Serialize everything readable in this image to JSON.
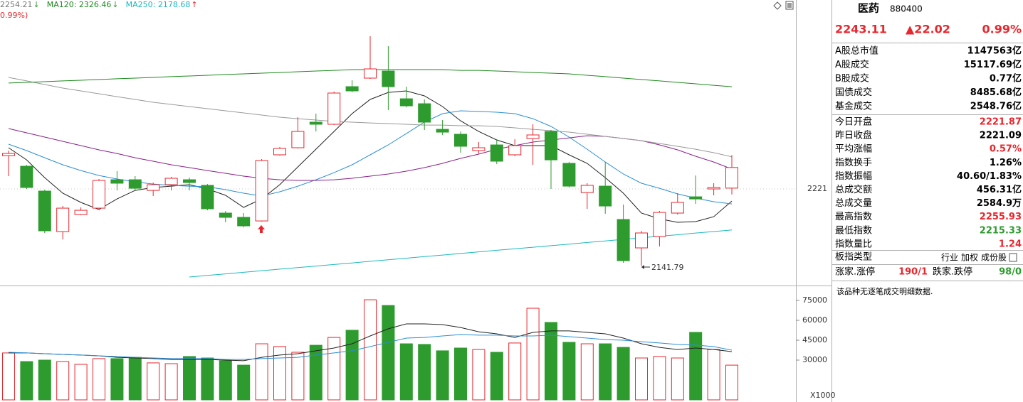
{
  "chart_data": [
    {
      "type": "candlestick",
      "ylim": [
        2121.4,
        2414.4
      ],
      "yticks": [
        2221
      ],
      "grid": true,
      "up_color": "#e8262d",
      "down_color": "#2e9b2e",
      "open": [
        2255.4,
        2244.4,
        2218.8,
        2177.0,
        2194.6,
        2201.2,
        2230.5,
        2230.5,
        2219.5,
        2225.4,
        2230.5,
        2224.7,
        2196.1,
        2191.7,
        2188.0,
        2256.2,
        2263.5,
        2289.9,
        2287.7,
        2326.5,
        2335.3,
        2342.6,
        2314.0,
        2308.9,
        2282.5,
        2277.4,
        2260.6,
        2266.4,
        2256.2,
        2273.0,
        2280.3,
        2247.4,
        2217.3,
        2223.9,
        2189.5,
        2160.2,
        2171.9,
        2196.1,
        2212.9,
        2221.0,
        2221.87
      ],
      "high": [
        2260.6,
        2245.9,
        2220.3,
        2203.4,
        2202.0,
        2231.3,
        2239.3,
        2234.2,
        2227.6,
        2233.5,
        2232.7,
        2226.1,
        2198.3,
        2196.1,
        2251.8,
        2264.2,
        2295.0,
        2298.7,
        2321.4,
        2333.1,
        2378.5,
        2368.3,
        2326.5,
        2313.3,
        2292.1,
        2280.3,
        2269.4,
        2272.3,
        2272.3,
        2287.7,
        2281.8,
        2248.8,
        2226.9,
        2248.8,
        2204.9,
        2177.8,
        2198.3,
        2216.6,
        2234.9,
        2226.9,
        2255.93
      ],
      "low": [
        2234.2,
        2221.0,
        2175.6,
        2169.0,
        2193.9,
        2200.5,
        2219.5,
        2219.5,
        2213.7,
        2219.5,
        2219.5,
        2199.0,
        2186.6,
        2181.4,
        2187.3,
        2255.4,
        2262.8,
        2280.3,
        2286.9,
        2320.6,
        2334.6,
        2302.3,
        2305.2,
        2281.8,
        2276.7,
        2258.4,
        2257.6,
        2246.6,
        2254.7,
        2245.9,
        2221.0,
        2222.5,
        2200.5,
        2195.4,
        2144.8,
        2141.79,
        2161.7,
        2194.6,
        2205.6,
        2214.4,
        2215.33
      ],
      "close": [
        2257.6,
        2222.5,
        2177.8,
        2201.2,
        2199.0,
        2229.8,
        2226.9,
        2221.7,
        2225.4,
        2232.0,
        2227.6,
        2200.5,
        2191.7,
        2182.9,
        2250.3,
        2262.8,
        2280.3,
        2287.7,
        2319.9,
        2322.1,
        2344.8,
        2326.5,
        2306.7,
        2289.9,
        2279.6,
        2265.0,
        2263.5,
        2249.6,
        2265.7,
        2276.7,
        2251.0,
        2223.9,
        2224.7,
        2203.4,
        2147.0,
        2175.6,
        2196.8,
        2207.1,
        2210.7,
        2222.5,
        2243.11
      ],
      "series": [
        {
          "color": "#222222",
          "values": [
            2263.5,
            2251.0,
            2232.7,
            2216.6,
            2207.1,
            2199.8,
            2210.7,
            2219.5,
            2222.5,
            2223.9,
            2225.4,
            2221.0,
            2214.4,
            2202.0,
            2210.7,
            2225.4,
            2243.7,
            2262.0,
            2280.3,
            2298.7,
            2313.3,
            2320.6,
            2322.1,
            2317.0,
            2306.0,
            2291.3,
            2280.3,
            2271.5,
            2265.7,
            2265.7,
            2265.7,
            2256.2,
            2247.4,
            2232.7,
            2216.6,
            2196.1,
            2190.2,
            2186.6,
            2187.3,
            2192.4,
            2208.5
          ]
        },
        {
          "color": "#2a8fd6",
          "values": [
            2267.2,
            2260.6,
            2253.2,
            2245.9,
            2240.0,
            2234.9,
            2231.3,
            2228.3,
            2226.1,
            2224.7,
            2223.9,
            2223.2,
            2220.3,
            2216.6,
            2213.7,
            2218.1,
            2223.9,
            2230.5,
            2237.8,
            2245.9,
            2256.2,
            2266.4,
            2278.1,
            2289.9,
            2298.7,
            2301.6,
            2300.9,
            2300.1,
            2298.7,
            2293.5,
            2285.5,
            2274.5,
            2262.0,
            2248.8,
            2236.4,
            2226.9,
            2221.7,
            2215.9,
            2211.5,
            2207.8,
            2205.6
          ]
        },
        {
          "color": "#8a1f8a",
          "values": [
            2283.3,
            2278.9,
            2274.5,
            2270.1,
            2265.7,
            2261.3,
            2257.6,
            2253.2,
            2249.6,
            2245.9,
            2243.0,
            2240.0,
            2237.1,
            2234.2,
            2232.0,
            2230.5,
            2229.8,
            2229.8,
            2230.5,
            2232.0,
            2234.2,
            2236.4,
            2239.3,
            2243.0,
            2247.4,
            2252.5,
            2256.9,
            2262.0,
            2265.7,
            2269.4,
            2271.5,
            2273.7,
            2275.9,
            2275.2,
            2273.0,
            2270.8,
            2266.4,
            2261.3,
            2254.7,
            2248.8,
            2241.5
          ]
        },
        {
          "color": "#999999",
          "values": [
            2336.0,
            2332.4,
            2328.7,
            2325.0,
            2322.1,
            2319.2,
            2316.2,
            2313.3,
            2310.4,
            2308.2,
            2306.0,
            2303.8,
            2301.6,
            2299.4,
            2297.2,
            2295.0,
            2293.5,
            2292.1,
            2290.6,
            2289.9,
            2289.1,
            2288.4,
            2287.7,
            2286.9,
            2286.9,
            2286.2,
            2286.2,
            2285.5,
            2284.0,
            2282.5,
            2281.1,
            2279.6,
            2277.4,
            2275.2,
            2273.0,
            2270.8,
            2267.9,
            2265.0,
            2262.0,
            2258.4,
            2254.21
          ]
        },
        {
          "color": "#1e8a1e",
          "values": [
            2330.2,
            2330.9,
            2331.6,
            2332.4,
            2333.1,
            2333.8,
            2334.6,
            2335.3,
            2336.0,
            2336.8,
            2337.5,
            2338.2,
            2339.0,
            2339.7,
            2340.4,
            2341.1,
            2341.9,
            2342.6,
            2343.3,
            2344.1,
            2344.1,
            2344.1,
            2344.1,
            2344.1,
            2344.1,
            2343.3,
            2343.3,
            2342.6,
            2341.9,
            2341.1,
            2340.4,
            2339.7,
            2338.2,
            2336.8,
            2335.3,
            2333.8,
            2332.4,
            2330.9,
            2329.4,
            2327.9,
            2326.46
          ]
        },
        {
          "color": "#1cb8c0",
          "values": [
            null,
            null,
            null,
            null,
            null,
            null,
            null,
            null,
            null,
            null,
            2130.2,
            2131.8,
            2133.4,
            2135.0,
            2136.7,
            2138.3,
            2139.9,
            2141.5,
            2143.1,
            2144.7,
            2146.4,
            2148.0,
            2149.6,
            2151.2,
            2152.8,
            2154.4,
            2156.1,
            2157.7,
            2159.3,
            2160.9,
            2162.5,
            2164.1,
            2165.8,
            2167.4,
            2169.0,
            2170.6,
            2172.2,
            2173.8,
            2175.5,
            2177.1,
            2178.68
          ]
        }
      ],
      "ma_labels": [
        {
          "text": "2254.21",
          "arrow": "↓",
          "color": "#777777",
          "arrow_color": "#2e9b2e"
        },
        {
          "text": "MA120: 2326.46",
          "arrow": "↓",
          "color": "#1e8a1e",
          "arrow_color": "#2e9b2e"
        },
        {
          "text": "MA250: 2178.68",
          "arrow": "↑",
          "color": "#1cb8c0",
          "arrow_color": "#e8262d"
        }
      ],
      "subtitle": "0.99%)",
      "low_label": "2141.79"
    },
    {
      "type": "volume",
      "ylim": [
        0,
        84640
      ],
      "yticks": [
        30000,
        45000,
        60000,
        75000
      ],
      "unit_label": "X1000",
      "values": [
        35400,
        28900,
        30000,
        28900,
        26800,
        31100,
        31100,
        32100,
        27900,
        27300,
        32700,
        31600,
        29500,
        26200,
        42300,
        40200,
        35900,
        41200,
        47100,
        52500,
        75500,
        71200,
        42300,
        41800,
        37000,
        39100,
        38000,
        35900,
        42900,
        69100,
        58400,
        43400,
        42300,
        42300,
        39600,
        31600,
        32700,
        31600,
        50900,
        38000,
        26200
      ],
      "series": [
        {
          "color": "#222222",
          "values": [
            35400,
            35400,
            34800,
            34300,
            33800,
            33200,
            32100,
            31600,
            31100,
            30500,
            30500,
            30500,
            30000,
            29500,
            32100,
            33800,
            34800,
            37000,
            39100,
            42300,
            48200,
            53600,
            57300,
            57300,
            56800,
            54600,
            51400,
            49800,
            47100,
            50900,
            52000,
            52000,
            50900,
            49800,
            46600,
            42300,
            39600,
            38000,
            39100,
            38000,
            36400
          ]
        },
        {
          "color": "#2a8fd6",
          "values": [
            35900,
            35400,
            34800,
            34300,
            33800,
            33200,
            32700,
            32100,
            31600,
            31100,
            31100,
            31100,
            30500,
            30500,
            31100,
            31600,
            32100,
            33800,
            35400,
            37000,
            40200,
            43400,
            46600,
            47100,
            48200,
            49300,
            48800,
            48800,
            48200,
            48200,
            48800,
            47700,
            46600,
            45500,
            45000,
            43900,
            42900,
            41800,
            41300,
            40200,
            37500
          ]
        }
      ]
    }
  ],
  "panel": {
    "name": "医药",
    "code": "880400",
    "price": "2243.11",
    "change": "▲22.02",
    "pct": "0.99%",
    "quote_color": "#e8262d",
    "group1": [
      {
        "label": "A股总市值",
        "value": "1147563亿"
      },
      {
        "label": "A股成交",
        "value": "15117.69亿"
      },
      {
        "label": "B股成交",
        "value": "0.77亿"
      },
      {
        "label": "国债成交",
        "value": "8485.68亿"
      },
      {
        "label": "基金成交",
        "value": "2548.76亿"
      }
    ],
    "group2": [
      {
        "label": "今日开盘",
        "value": "2221.87",
        "color": "#e8262d"
      },
      {
        "label": "昨日收盘",
        "value": "2221.09",
        "color": "#000000"
      },
      {
        "label": "平均涨幅",
        "value": "0.57%",
        "color": "#e8262d"
      },
      {
        "label": "指数换手",
        "value": "1.26%",
        "color": "#000000"
      },
      {
        "label": "指数振幅",
        "value": "40.60/1.83%",
        "color": "#000000"
      },
      {
        "label": "总成交额",
        "value": "456.31亿",
        "color": "#000000"
      },
      {
        "label": "总成交量",
        "value": "2584.9万",
        "color": "#000000"
      },
      {
        "label": "最高指数",
        "value": "2255.93",
        "color": "#e8262d"
      },
      {
        "label": "最低指数",
        "value": "2215.33",
        "color": "#2e9b2e"
      },
      {
        "label": "指数量比",
        "value": "1.24",
        "color": "#e8262d"
      }
    ],
    "type_label": "板指类型",
    "type_options": [
      "行业",
      "加权",
      "成份股"
    ],
    "breadth": {
      "up_label": "涨家.涨停",
      "up_value": "190/1",
      "down_label": "跌家.跌停",
      "down_value": "98/0"
    },
    "note": "该品种无逐笔成交明细数据."
  }
}
